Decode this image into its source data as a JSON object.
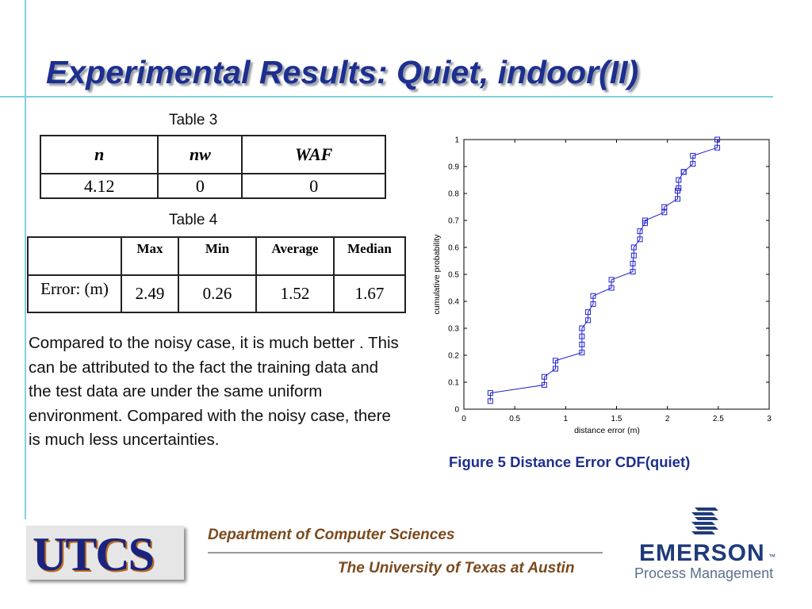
{
  "slide": {
    "title": "Experimental Results: Quiet, indoor(II)"
  },
  "table3": {
    "caption": "Table 3",
    "headers": [
      "n",
      "nw",
      "WAF"
    ],
    "row": [
      "4.12",
      "0",
      "0"
    ]
  },
  "table4": {
    "caption": "Table 4",
    "headers": [
      "",
      "Max",
      "Min",
      "Average",
      "Median"
    ],
    "row": [
      "Error: (m)",
      "2.49",
      "0.26",
      "1.52",
      "1.67"
    ]
  },
  "paragraph": "Compared to the noisy case, it is much better . This can be attributed to the fact the training data and the test data are under the same uniform environment. Compared with the noisy case, there is much less uncertainties.",
  "figure_caption": "Figure 5 Distance Error CDF(quiet)",
  "chart_data": {
    "type": "line",
    "title": "",
    "xlabel": "distance error (m)",
    "ylabel": "cumulative probability",
    "xlim": [
      0,
      3
    ],
    "ylim": [
      0,
      1
    ],
    "xticks": [
      "0",
      "0.5",
      "1",
      "1.5",
      "2",
      "2.5",
      "3"
    ],
    "yticks": [
      "0",
      "0.1",
      "0.2",
      "0.3",
      "0.4",
      "0.5",
      "0.6",
      "0.7",
      "0.8",
      "0.9",
      "1"
    ],
    "grid": false,
    "marker": "square",
    "color": "#1f1fd0",
    "series": [
      {
        "x": [
          0.26,
          0.26,
          0.79,
          0.79,
          0.9,
          0.9,
          1.16,
          1.16,
          1.16,
          1.16,
          1.22,
          1.22,
          1.27,
          1.27,
          1.45,
          1.45,
          1.66,
          1.66,
          1.67,
          1.67,
          1.73,
          1.73,
          1.78,
          1.78,
          1.97,
          1.97,
          2.1,
          2.1,
          2.11,
          2.11,
          2.16,
          2.16,
          2.25,
          2.25,
          2.49,
          2.49
        ],
        "y": [
          0.03,
          0.06,
          0.09,
          0.12,
          0.15,
          0.18,
          0.21,
          0.24,
          0.27,
          0.3,
          0.33,
          0.36,
          0.39,
          0.42,
          0.45,
          0.48,
          0.51,
          0.54,
          0.57,
          0.6,
          0.63,
          0.66,
          0.69,
          0.7,
          0.73,
          0.75,
          0.78,
          0.81,
          0.82,
          0.85,
          0.88,
          0.88,
          0.91,
          0.94,
          0.97,
          1.0
        ]
      }
    ]
  },
  "footer": {
    "logo_text": "UTCS",
    "dept_line1": "Department of Computer Sciences",
    "dept_line2": "The University of Texas at Austin",
    "emerson_name": "EMERSON",
    "emerson_tm": "™",
    "emerson_sub": "Process Management"
  }
}
